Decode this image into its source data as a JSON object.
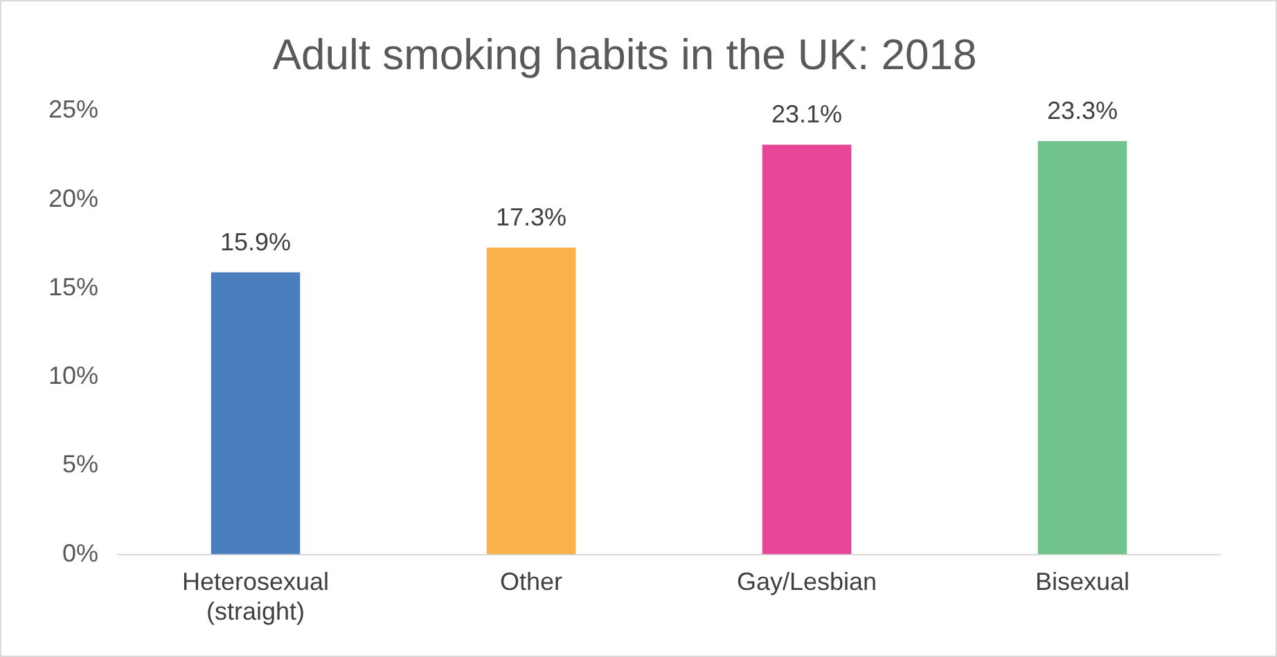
{
  "chart_data": {
    "type": "bar",
    "title": "Adult smoking habits in the UK: 2018",
    "categories": [
      "Heterosexual (straight)",
      "Other",
      "Gay/Lesbian",
      "Bisexual"
    ],
    "values": [
      15.9,
      17.3,
      23.1,
      23.3
    ],
    "colors": [
      "#4a7ebf",
      "#fbb04b",
      "#e84797",
      "#70c48b"
    ],
    "value_labels": [
      "15.9%",
      "17.3%",
      "23.1%",
      "23.3%"
    ],
    "ylim": [
      0,
      25
    ],
    "yticks": [
      {
        "value": 0,
        "label": "0%"
      },
      {
        "value": 5,
        "label": "5%"
      },
      {
        "value": 10,
        "label": "10%"
      },
      {
        "value": 15,
        "label": "15%"
      },
      {
        "value": 20,
        "label": "20%"
      },
      {
        "value": 25,
        "label": "25%"
      }
    ],
    "grid": false,
    "legend": false
  }
}
